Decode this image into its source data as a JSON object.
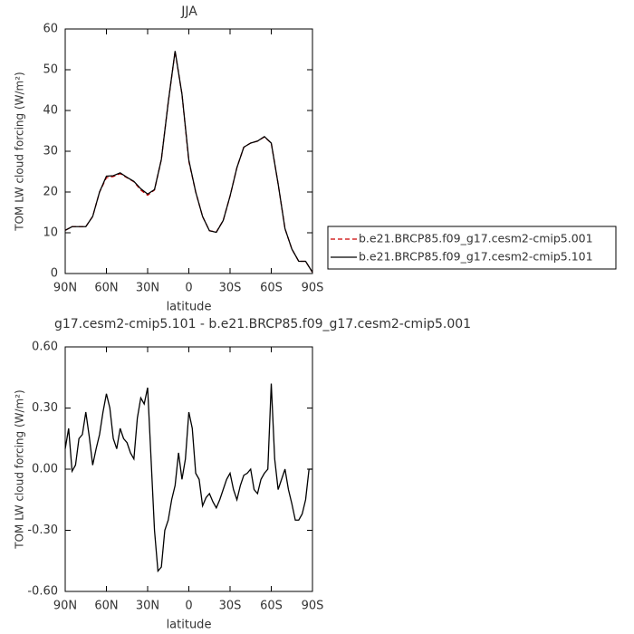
{
  "chart_data": [
    {
      "type": "line",
      "title": "JJA",
      "x_label": "latitude",
      "y_label": "TOM LW cloud forcing (W/m²)",
      "x": [
        90,
        85,
        80,
        75,
        70,
        65,
        60,
        55,
        50,
        45,
        40,
        35,
        30,
        25,
        20,
        15,
        10,
        5,
        0,
        -5,
        -10,
        -15,
        -20,
        -25,
        -30,
        -35,
        -40,
        -45,
        -50,
        -55,
        -60,
        -65,
        -70,
        -75,
        -80,
        -85,
        -90
      ],
      "series": [
        {
          "name": "b.e21.BRCP85.f09_g17.cesm2-cmip5.001",
          "color": "#cc0000",
          "line_style": "dashed",
          "values": [
            10.6,
            11.5,
            11.5,
            11.5,
            14,
            20,
            23.5,
            23.8,
            24.5,
            23.5,
            22.5,
            20.5,
            19.2,
            20.5,
            28,
            42,
            54.5,
            44,
            27.5,
            20,
            14,
            10.5,
            10.2,
            13,
            19,
            26,
            31,
            32,
            32.5,
            33.5,
            32,
            22,
            11,
            6,
            3,
            3,
            0.3
          ]
        },
        {
          "name": "b.e21.BRCP85.f09_g17.cesm2-cmip5.101",
          "color": "#000000",
          "line_style": "solid",
          "values": [
            10.6,
            11.5,
            11.5,
            11.5,
            14,
            20,
            23.9,
            24,
            24.7,
            23.6,
            22.6,
            20.8,
            19.5,
            20.6,
            28,
            42,
            54.6,
            44,
            27.8,
            20,
            14,
            10.5,
            10.1,
            13,
            19,
            26,
            31,
            32,
            32.5,
            33.6,
            32,
            22,
            11,
            6,
            3,
            3,
            0.3
          ]
        }
      ],
      "xlim": [
        90,
        -90
      ],
      "xticks": [
        {
          "value": 90,
          "label": "90N"
        },
        {
          "value": 60,
          "label": "60N"
        },
        {
          "value": 30,
          "label": "30N"
        },
        0,
        {
          "value": -30,
          "label": "30S"
        },
        {
          "value": -60,
          "label": "60S"
        },
        {
          "value": -90,
          "label": "90S"
        }
      ],
      "ylim": [
        0,
        60
      ],
      "yticks": [
        0,
        10,
        20,
        30,
        40,
        50,
        60
      ],
      "legend": "right"
    },
    {
      "type": "line",
      "title": "g17.cesm2-cmip5.101 - b.e21.BRCP85.f09_g17.cesm2-cmip5.001",
      "x_label": "latitude",
      "y_label": "TOM LW cloud forcing (W/m²)",
      "x": [
        90,
        87.5,
        85,
        82.5,
        80,
        77.5,
        75,
        72.5,
        70,
        67.5,
        65,
        62.5,
        60,
        57.5,
        55,
        52.5,
        50,
        47.5,
        45,
        42.5,
        40,
        37.5,
        35,
        32.5,
        30,
        27.5,
        25,
        22.5,
        20,
        17.5,
        15,
        12.5,
        10,
        7.5,
        5,
        2.5,
        0,
        -2.5,
        -5,
        -7.5,
        -10,
        -12.5,
        -15,
        -17.5,
        -20,
        -22.5,
        -25,
        -27.5,
        -30,
        -32.5,
        -35,
        -37.5,
        -40,
        -42.5,
        -45,
        -47.5,
        -50,
        -52.5,
        -55,
        -57.5,
        -60,
        -62.5,
        -65,
        -67.5,
        -70,
        -72.5,
        -75,
        -77.5,
        -80,
        -82.5,
        -85,
        -87.5,
        -90
      ],
      "series": [
        {
          "color": "#000000",
          "line_style": "solid",
          "values": [
            0.1,
            0.2,
            -0.01,
            0.02,
            0.15,
            0.17,
            0.28,
            0.16,
            0.02,
            0.1,
            0.17,
            0.28,
            0.37,
            0.3,
            0.15,
            0.1,
            0.2,
            0.15,
            0.13,
            0.08,
            0.05,
            0.25,
            0.35,
            0.32,
            0.4,
            0.05,
            -0.3,
            -0.5,
            -0.48,
            -0.3,
            -0.25,
            -0.15,
            -0.08,
            0.08,
            -0.05,
            0.05,
            0.28,
            0.2,
            -0.02,
            -0.05,
            -0.18,
            -0.14,
            -0.12,
            -0.16,
            -0.19,
            -0.15,
            -0.1,
            -0.05,
            -0.02,
            -0.1,
            -0.15,
            -0.08,
            -0.03,
            -0.02,
            0,
            -0.1,
            -0.12,
            -0.05,
            -0.02,
            0,
            0.42,
            0.05,
            -0.1,
            -0.05,
            0,
            -0.1,
            -0.17,
            -0.25,
            -0.25,
            -0.22,
            -0.15,
            0,
            0
          ]
        }
      ],
      "xlim": [
        90,
        -90
      ],
      "xticks": [
        {
          "value": 90,
          "label": "90N"
        },
        {
          "value": 60,
          "label": "60N"
        },
        {
          "value": 30,
          "label": "30N"
        },
        0,
        {
          "value": -30,
          "label": "30S"
        },
        {
          "value": -60,
          "label": "60S"
        },
        {
          "value": -90,
          "label": "90S"
        }
      ],
      "ylim": [
        -0.6,
        0.6
      ],
      "yticks": [
        {
          "value": -0.6,
          "label": "-0.60"
        },
        {
          "value": -0.3,
          "label": "-0.30"
        },
        {
          "value": 0,
          "label": "0.00"
        },
        {
          "value": 0.3,
          "label": "0.30"
        },
        {
          "value": 0.6,
          "label": "0.60"
        }
      ]
    }
  ]
}
